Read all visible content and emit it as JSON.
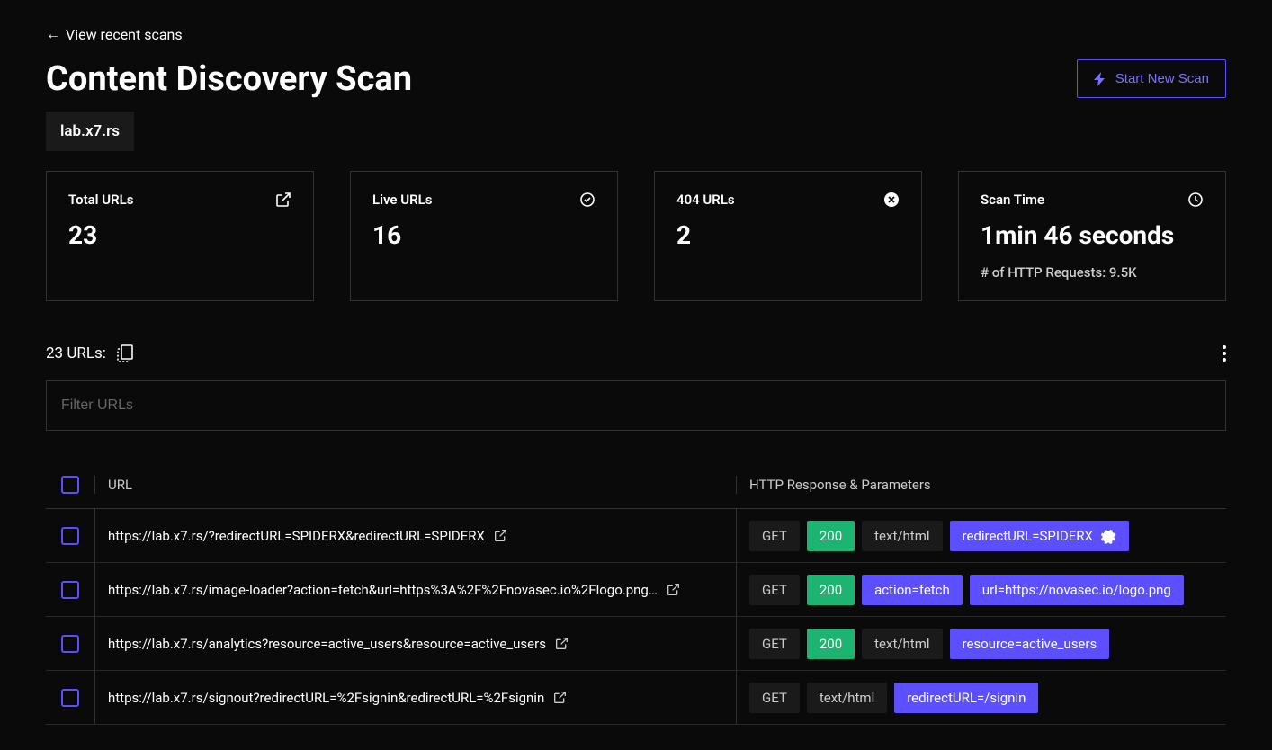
{
  "back_link": "View recent scans",
  "page_title": "Content Discovery Scan",
  "start_button": "Start New Scan",
  "domain": "lab.x7.rs",
  "colors": {
    "accent": "#5b4fff",
    "success": "#1db370",
    "bg": "#0a0a0a",
    "card_border": "#333333",
    "chip_bg": "#1a1a1a"
  },
  "stats": [
    {
      "label": "Total URLs",
      "value": "23",
      "icon": "open-in-new"
    },
    {
      "label": "Live URLs",
      "value": "16",
      "icon": "check-circle"
    },
    {
      "label": "404 URLs",
      "value": "2",
      "icon": "x-circle"
    },
    {
      "label": "Scan Time",
      "value": "1min 46 seconds",
      "icon": "clock",
      "sub": "# of HTTP Requests: 9.5K"
    }
  ],
  "url_count_label": "23 URLs:",
  "filter_placeholder": "Filter URLs",
  "table": {
    "headers": {
      "url": "URL",
      "resp": "HTTP Response & Parameters"
    },
    "rows": [
      {
        "url": "https://lab.x7.rs/?redirectURL=SPIDERX&redirectURL=SPIDERX",
        "method": "GET",
        "status": "200",
        "content_type": "text/html",
        "params": [
          {
            "text": "redirectURL=SPIDERX",
            "gear": true
          }
        ]
      },
      {
        "url": "https://lab.x7.rs/image-loader?action=fetch&url=https%3A%2F%2Fnovasec.io%2Flogo.png…",
        "method": "GET",
        "status": "200",
        "content_type": "",
        "params": [
          {
            "text": "action=fetch"
          },
          {
            "text": "url=https://novasec.io/logo.png"
          }
        ]
      },
      {
        "url": "https://lab.x7.rs/analytics?resource=active_users&resource=active_users",
        "method": "GET",
        "status": "200",
        "content_type": "text/html",
        "params": [
          {
            "text": "resource=active_users"
          }
        ]
      },
      {
        "url": "https://lab.x7.rs/signout?redirectURL=%2Fsignin&redirectURL=%2Fsignin",
        "method": "GET",
        "status": "",
        "content_type": "text/html",
        "params": [
          {
            "text": "redirectURL=/signin"
          }
        ]
      }
    ]
  }
}
